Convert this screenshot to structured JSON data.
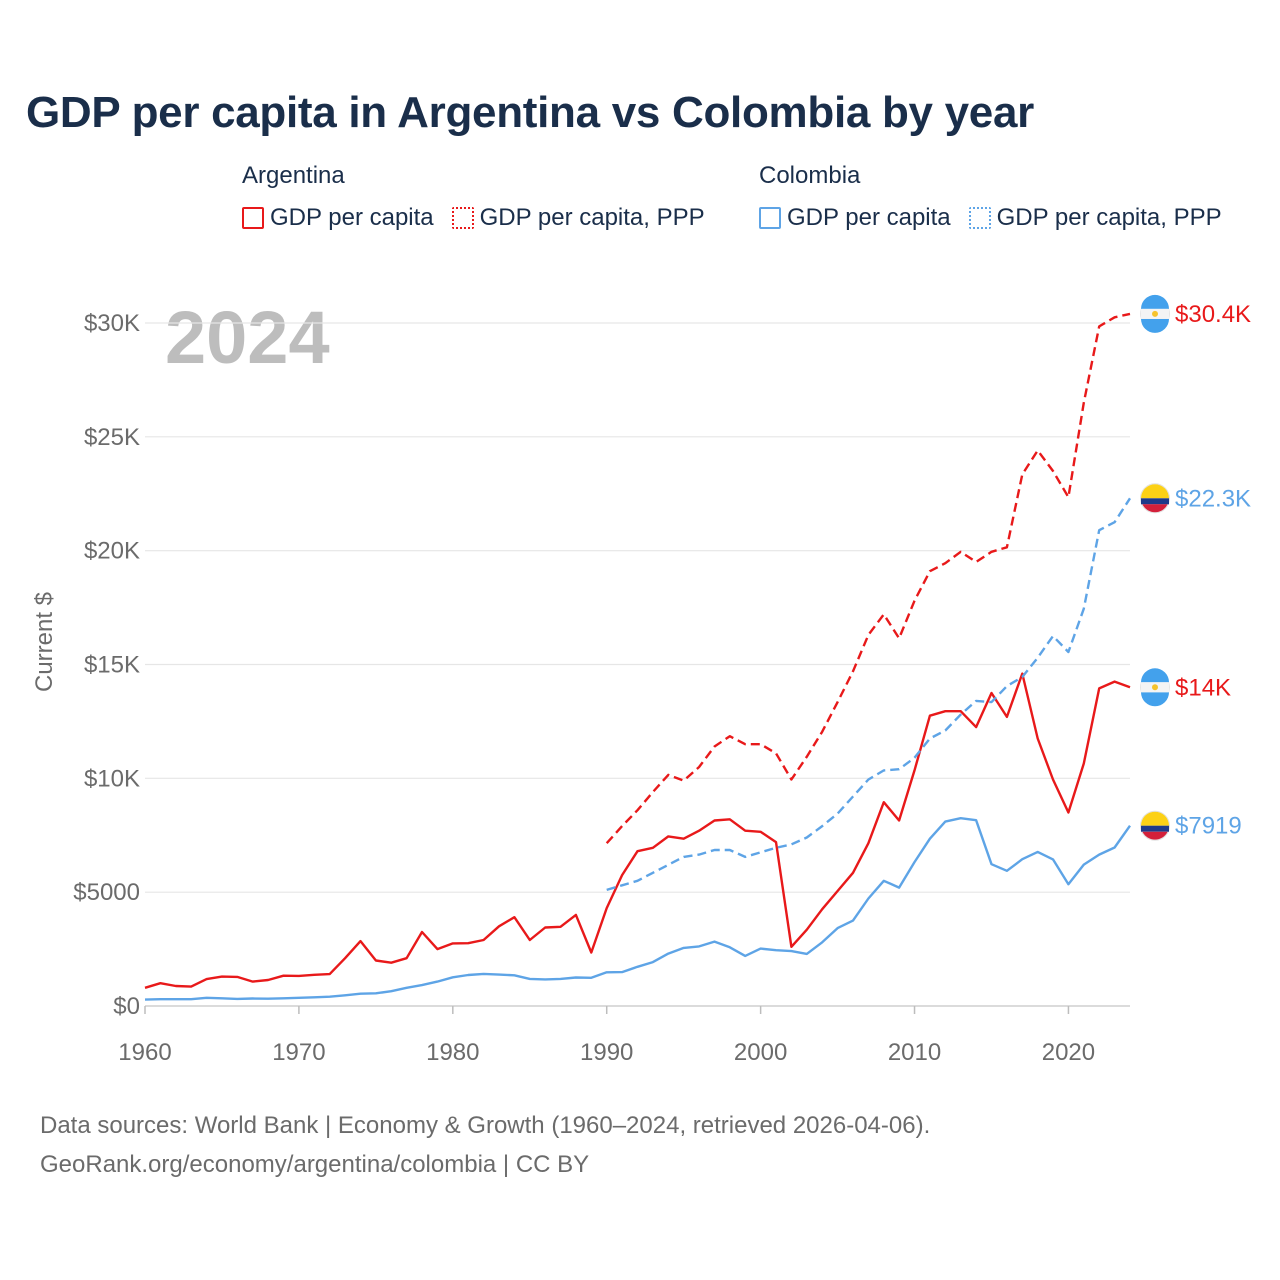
{
  "title": "GDP per capita in Argentina vs Colombia by year",
  "legend": {
    "groups": [
      {
        "name": "Argentina",
        "color": "#e8191a",
        "items": [
          {
            "label": "GDP per capita",
            "style": "solid"
          },
          {
            "label": "GDP per capita, PPP",
            "style": "dotted"
          }
        ]
      },
      {
        "name": "Colombia",
        "color": "#5ea4e6",
        "items": [
          {
            "label": "GDP per capita",
            "style": "solid"
          },
          {
            "label": "GDP per capita, PPP",
            "style": "dotted"
          }
        ]
      }
    ]
  },
  "footer": {
    "line1": "Data sources: World Bank | Economy & Growth (1960–2024, retrieved 2026-04-06).",
    "line2": "GeoRank.org/economy/argentina/colombia | CC BY"
  },
  "chart_data": {
    "type": "line",
    "year_label": "2024",
    "ylabel": "Current $",
    "xlim": [
      1960,
      2024
    ],
    "ylim": [
      0,
      31500
    ],
    "x_ticks": [
      1960,
      1970,
      1980,
      1990,
      2000,
      2010,
      2020
    ],
    "y_ticks": [
      {
        "value": 0,
        "label": "$0"
      },
      {
        "value": 5000,
        "label": "$5000"
      },
      {
        "value": 10000,
        "label": "$10K"
      },
      {
        "value": 15000,
        "label": "$15K"
      },
      {
        "value": 20000,
        "label": "$20K"
      },
      {
        "value": 25000,
        "label": "$25K"
      },
      {
        "value": 30000,
        "label": "$30K"
      }
    ],
    "grid": true,
    "series": [
      {
        "name": "Argentina GDP per capita",
        "country": "argentina",
        "color": "#e8191a",
        "dash": "solid",
        "start_year": 1960,
        "end_label": "$14K",
        "values": [
          800,
          1000,
          880,
          850,
          1180,
          1290,
          1280,
          1070,
          1140,
          1330,
          1320,
          1370,
          1400,
          2100,
          2850,
          2000,
          1900,
          2100,
          3250,
          2500,
          2750,
          2760,
          2900,
          3500,
          3900,
          2900,
          3450,
          3480,
          4000,
          2350,
          4300,
          5750,
          6800,
          6950,
          7450,
          7350,
          7700,
          8150,
          8200,
          7700,
          7650,
          7200,
          2600,
          3350,
          4250,
          5050,
          5850,
          7150,
          8950,
          8150,
          10350,
          12750,
          12950,
          12950,
          12250,
          13750,
          12700,
          14600,
          11750,
          9950,
          8500,
          10650,
          13950,
          14250,
          14000
        ]
      },
      {
        "name": "Argentina GDP per capita, PPP",
        "country": "argentina",
        "color": "#e8191a",
        "dash": "dashed",
        "start_year": 1990,
        "end_label": "$30.4K",
        "values": [
          7150,
          7900,
          8600,
          9400,
          10150,
          9900,
          10500,
          11400,
          11850,
          11500,
          11500,
          11100,
          9950,
          10950,
          12050,
          13350,
          14700,
          16300,
          17200,
          16150,
          17800,
          19100,
          19450,
          19950,
          19500,
          19950,
          20150,
          23350,
          24400,
          23500,
          22350,
          26500,
          29850,
          30250,
          30400
        ]
      },
      {
        "name": "Colombia GDP per capita",
        "country": "colombia",
        "color": "#5ea4e6",
        "dash": "solid",
        "start_year": 1960,
        "end_label": "$7919",
        "values": [
          280,
          300,
          300,
          300,
          360,
          340,
          310,
          330,
          320,
          340,
          360,
          380,
          410,
          470,
          540,
          560,
          650,
          800,
          920,
          1070,
          1260,
          1360,
          1410,
          1380,
          1350,
          1190,
          1170,
          1190,
          1250,
          1240,
          1480,
          1490,
          1720,
          1930,
          2300,
          2550,
          2620,
          2830,
          2580,
          2200,
          2520,
          2450,
          2410,
          2290,
          2800,
          3420,
          3750,
          4720,
          5500,
          5200,
          6320,
          7350,
          8100,
          8250,
          8160,
          6230,
          5940,
          6450,
          6770,
          6440,
          5350,
          6210,
          6650,
          6960,
          7919
        ]
      },
      {
        "name": "Colombia GDP per capita, PPP",
        "country": "colombia",
        "color": "#5ea4e6",
        "dash": "dashed",
        "start_year": 1990,
        "end_label": "$22.3K",
        "values": [
          5100,
          5300,
          5500,
          5850,
          6200,
          6550,
          6650,
          6850,
          6850,
          6550,
          6750,
          6950,
          7100,
          7400,
          7900,
          8450,
          9200,
          9950,
          10350,
          10400,
          10900,
          11750,
          12100,
          12800,
          13400,
          13350,
          14050,
          14450,
          15300,
          16250,
          15550,
          17450,
          20900,
          21250,
          22300
        ]
      }
    ]
  }
}
